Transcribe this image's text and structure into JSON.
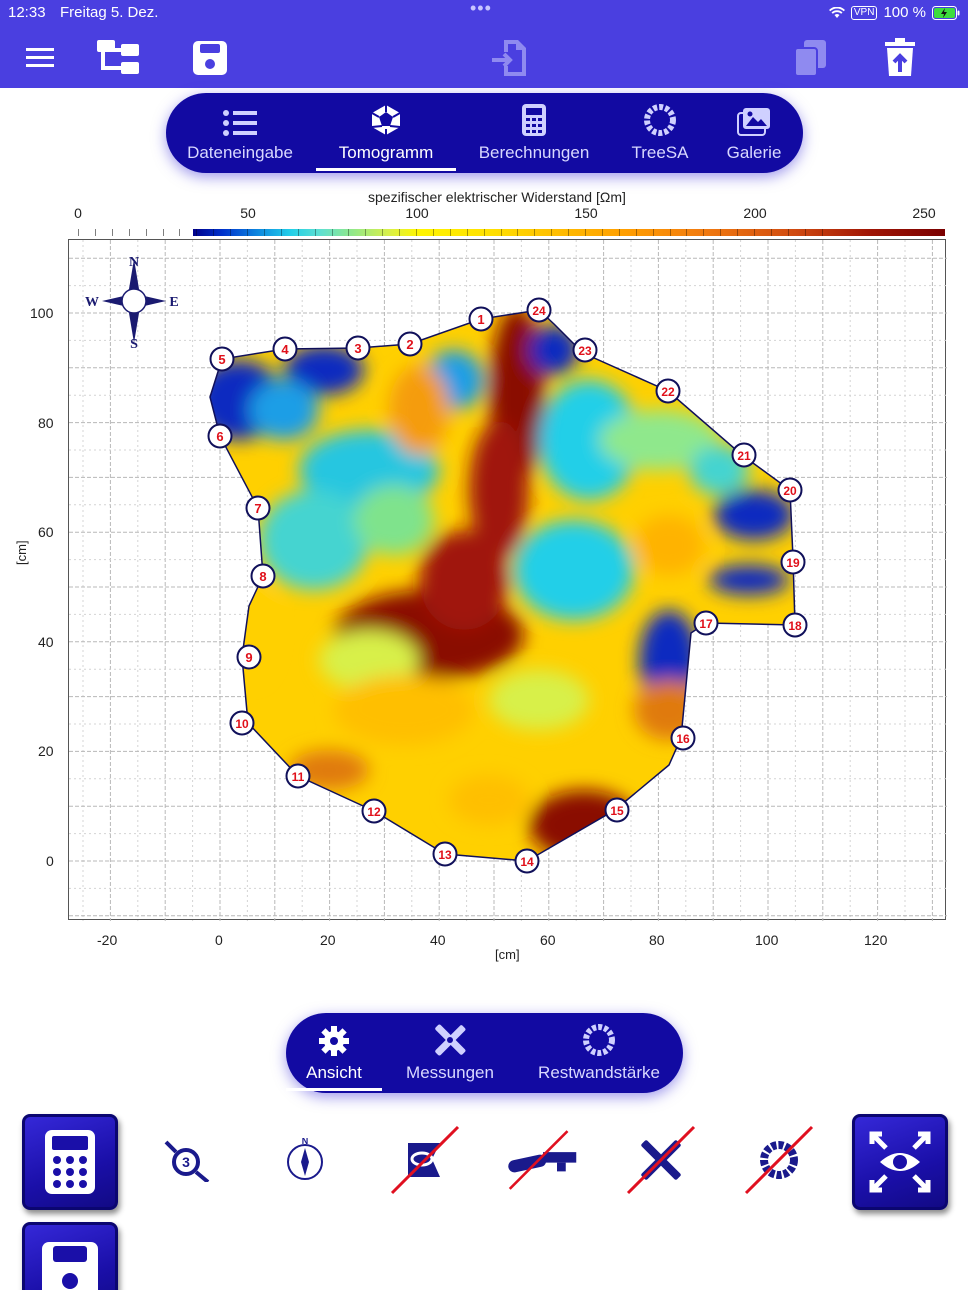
{
  "status_bar": {
    "time": "12:33",
    "date": "Freitag 5. Dez.",
    "dots": "•••",
    "battery": "100 %",
    "vpn": "VPN"
  },
  "main_tabs": [
    {
      "label": "Dateneingabe",
      "icon": "list-icon",
      "active": false
    },
    {
      "label": "Tomogramm",
      "icon": "tomogram-icon",
      "active": true
    },
    {
      "label": "Berechnungen",
      "icon": "calculator-icon",
      "active": false
    },
    {
      "label": "TreeSA",
      "icon": "tree-ring-icon",
      "active": false
    },
    {
      "label": "Galerie",
      "icon": "gallery-icon",
      "active": false
    }
  ],
  "colorbar": {
    "title": "spezifischer elektrischer Widerstand [Ωm]",
    "ticks": [
      "0",
      "50",
      "100",
      "150",
      "200",
      "250"
    ]
  },
  "plot": {
    "x_label": "[cm]",
    "y_label": "[cm]",
    "x_ticks": [
      "-20",
      "0",
      "20",
      "40",
      "60",
      "80",
      "100",
      "120"
    ],
    "y_ticks": [
      "100",
      "80",
      "60",
      "40",
      "20",
      "0"
    ],
    "compass": {
      "n": "N",
      "s": "S",
      "e": "E",
      "w": "W"
    },
    "sensor_labels": [
      "1",
      "2",
      "3",
      "4",
      "5",
      "6",
      "7",
      "8",
      "9",
      "10",
      "11",
      "12",
      "13",
      "14",
      "15",
      "16",
      "17",
      "18",
      "19",
      "20",
      "21",
      "22",
      "23",
      "24"
    ],
    "colors": {
      "sensor_text": "#e0101a",
      "outline": "#10105a"
    }
  },
  "sub_tabs": [
    {
      "label": "Ansicht",
      "icon": "gear-icon",
      "active": true
    },
    {
      "label": "Messungen",
      "icon": "measure-tools-icon",
      "active": false
    },
    {
      "label": "Restwandstärke",
      "icon": "tree-ring-icon",
      "active": false
    }
  ],
  "toolbar_icons": [
    "calculator-icon",
    "sensor-3-icon",
    "compass-icon",
    "tag-disabled-icon",
    "saw-disabled-icon",
    "tools-disabled-icon",
    "ring-disabled-icon",
    "fit-view-icon",
    "save-icon"
  ],
  "colors": {
    "topbar": "#4a3fe0",
    "tabbar": "#120aa2",
    "button": "#1a0fa8"
  }
}
